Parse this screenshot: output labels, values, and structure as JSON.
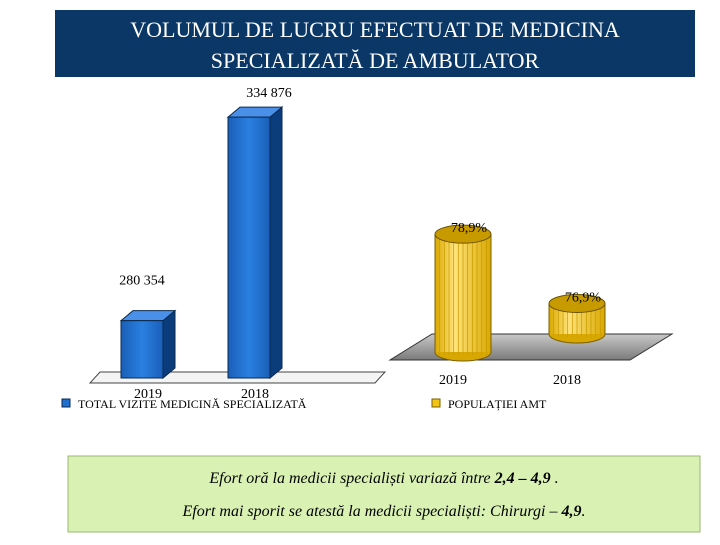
{
  "header": {
    "title_lines": [
      "VOLUMUL DE LUCRU EFECTUAT DE MEDICINA",
      "SPECIALIZATĂ DE AMBULATOR"
    ]
  },
  "chart_data": [
    {
      "type": "bar",
      "categories": [
        "2019",
        "2018"
      ],
      "series": [
        {
          "name": "TOTAL VIZITE MEDICINĂ SPECIALIZATĂ",
          "color": "#1f6fd0",
          "values": [
            280354,
            334876
          ],
          "value_labels": [
            "280 354",
            "334 876"
          ]
        }
      ],
      "ylim": [
        265000,
        340000
      ]
    },
    {
      "type": "cylinder",
      "categories": [
        "2019",
        "2018"
      ],
      "series": [
        {
          "name": "POPULAȚIEI AMT",
          "color": "#f2c40f",
          "values": [
            78.9,
            76.9
          ],
          "value_labels": [
            "78,9%",
            "76,9%"
          ]
        }
      ],
      "ylim": [
        76.2,
        79.5
      ]
    }
  ],
  "footer": {
    "lines": [
      [
        {
          "text": "Efort oră la medicii specialiști variază între ",
          "bold": false
        },
        {
          "text": "2,4 – 4,9",
          "bold": true
        },
        {
          "text": " .",
          "bold": false
        }
      ],
      [
        {
          "text": "Efort mai sporit se atestă la medicii specialiști: Chirurgi – ",
          "bold": false
        },
        {
          "text": "4,9",
          "bold": true
        },
        {
          "text": ".",
          "bold": false
        }
      ]
    ]
  }
}
